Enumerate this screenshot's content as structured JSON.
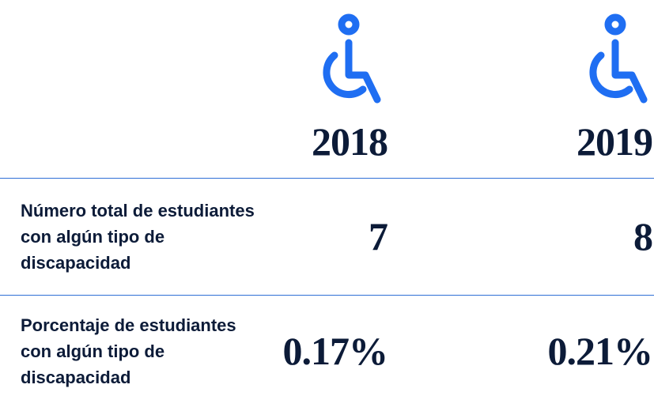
{
  "table": {
    "columns": [
      "2018",
      "2019"
    ],
    "rows": [
      [
        "Número total de estudiantes con algún tipo de discapacidad",
        "7",
        "8"
      ],
      [
        "Porcentaje de estudiantes con algún tipo de discapacidad",
        "0.17%",
        "0.21%"
      ]
    ]
  }
}
